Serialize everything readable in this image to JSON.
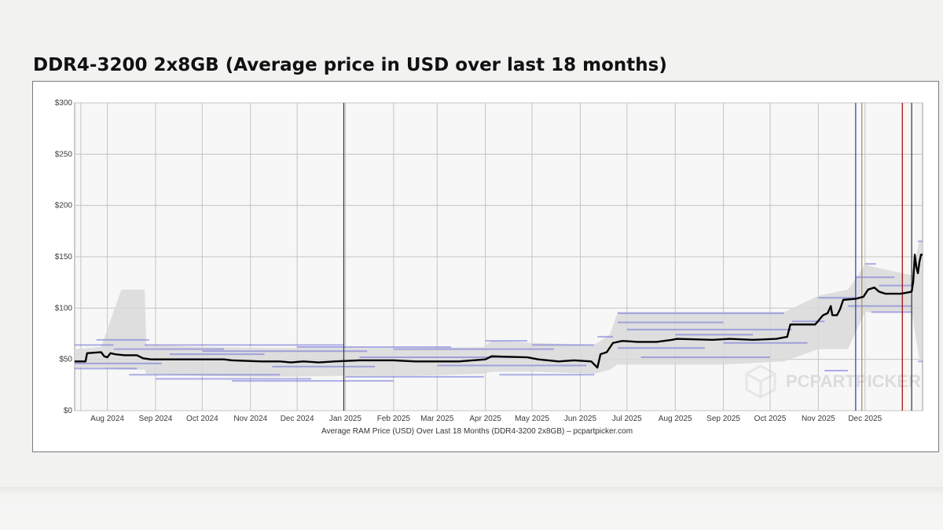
{
  "page": {
    "title": "DDR4-3200 2x8GB (Average price in USD over last 18 months)"
  },
  "chart_data": {
    "type": "line",
    "title": "DDR4-3200 2x8GB (Average price in USD over last 18 months)",
    "caption": "Average RAM Price (USD) Over Last 18 Months (DDR4-3200 2x8GB) – pcpartpicker.com",
    "watermark": "PCPARTPICKER",
    "y_ticks": [
      0,
      50,
      100,
      150,
      200,
      250,
      300
    ],
    "y_tick_labels": [
      "$0",
      "$50",
      "$100",
      "$150",
      "$200",
      "$250",
      "$300"
    ],
    "ylim": [
      0,
      300
    ],
    "xlim": [
      "2024-07-11",
      "2025-12-31"
    ],
    "x_ticks": [
      {
        "date": "2024-08-01",
        "label": "Aug 2024"
      },
      {
        "date": "2024-09-01",
        "label": "Sep 2024"
      },
      {
        "date": "2024-10-01",
        "label": "Oct 2024"
      },
      {
        "date": "2024-11-01",
        "label": "Nov 2024"
      },
      {
        "date": "2024-12-01",
        "label": "Dec 2024"
      },
      {
        "date": "2025-01-01",
        "label": "Jan 2025"
      },
      {
        "date": "2025-02-01",
        "label": "Feb 2025"
      },
      {
        "date": "2025-03-01",
        "label": "Mar 2025"
      },
      {
        "date": "2025-04-01",
        "label": "Apr 2025"
      },
      {
        "date": "2025-05-01",
        "label": "May 2025"
      },
      {
        "date": "2025-06-01",
        "label": "Jun 2025"
      },
      {
        "date": "2025-07-01",
        "label": "Jul 2025"
      },
      {
        "date": "2025-08-01",
        "label": "Aug 2025"
      },
      {
        "date": "2025-09-01",
        "label": "Sep 2025"
      },
      {
        "date": "2025-10-01",
        "label": "Oct 2025"
      },
      {
        "date": "2025-11-01",
        "label": "Nov 2025"
      },
      {
        "date": "2025-12-01",
        "label": "Dec 2025"
      }
    ],
    "x_ticks_unlabeled": [
      "2024-07-15",
      "2024-12-31"
    ],
    "markers": [
      {
        "date": "2024-12-31",
        "color": "#333333"
      },
      {
        "date": "2025-11-25",
        "color": "#3333aa"
      },
      {
        "date": "2025-11-29",
        "color": "#a08870"
      },
      {
        "date": "2025-12-25",
        "color": "#990000"
      },
      {
        "date": "2025-12-31",
        "color": "#333333"
      }
    ],
    "series": [
      {
        "style": "average",
        "color": "#000000",
        "points": [
          [
            "2024-07-11",
            48
          ],
          [
            "2024-07-18",
            48
          ],
          [
            "2024-07-19",
            56
          ],
          [
            "2024-07-28",
            57
          ],
          [
            "2024-07-30",
            53
          ],
          [
            "2024-08-01",
            52
          ],
          [
            "2024-08-03",
            56
          ],
          [
            "2024-08-06",
            55
          ],
          [
            "2024-08-12",
            54
          ],
          [
            "2024-08-20",
            54
          ],
          [
            "2024-08-24",
            51
          ],
          [
            "2024-08-29",
            50
          ],
          [
            "2024-09-15",
            50
          ],
          [
            "2024-10-15",
            50
          ],
          [
            "2024-10-20",
            49
          ],
          [
            "2024-11-08",
            48
          ],
          [
            "2024-11-20",
            48
          ],
          [
            "2024-11-27",
            47
          ],
          [
            "2024-12-05",
            48
          ],
          [
            "2024-12-15",
            47
          ],
          [
            "2024-12-25",
            48
          ],
          [
            "2025-01-10",
            49
          ],
          [
            "2025-02-01",
            49
          ],
          [
            "2025-02-15",
            48
          ],
          [
            "2025-03-15",
            48
          ],
          [
            "2025-04-01",
            50
          ],
          [
            "2025-04-05",
            53
          ],
          [
            "2025-04-28",
            52
          ],
          [
            "2025-05-05",
            50
          ],
          [
            "2025-05-18",
            48
          ],
          [
            "2025-05-28",
            49
          ],
          [
            "2025-06-08",
            48
          ],
          [
            "2025-06-12",
            42
          ],
          [
            "2025-06-14",
            55
          ],
          [
            "2025-06-18",
            57
          ],
          [
            "2025-06-22",
            66
          ],
          [
            "2025-06-28",
            68
          ],
          [
            "2025-07-08",
            67
          ],
          [
            "2025-07-20",
            67
          ],
          [
            "2025-07-30",
            69
          ],
          [
            "2025-08-02",
            70
          ],
          [
            "2025-08-25",
            69
          ],
          [
            "2025-09-05",
            70
          ],
          [
            "2025-09-20",
            69
          ],
          [
            "2025-10-05",
            70
          ],
          [
            "2025-10-12",
            72
          ],
          [
            "2025-10-14",
            84
          ],
          [
            "2025-10-30",
            84
          ],
          [
            "2025-11-04",
            93
          ],
          [
            "2025-11-07",
            95
          ],
          [
            "2025-11-09",
            102
          ],
          [
            "2025-11-10",
            93
          ],
          [
            "2025-11-13",
            93
          ],
          [
            "2025-11-15",
            99
          ],
          [
            "2025-11-17",
            108
          ],
          [
            "2025-11-25",
            109
          ],
          [
            "2025-11-30",
            111
          ],
          [
            "2025-12-03",
            118
          ],
          [
            "2025-12-07",
            120
          ],
          [
            "2025-12-10",
            116
          ],
          [
            "2025-12-14",
            114
          ],
          [
            "2025-12-24",
            114
          ],
          [
            "2025-12-28",
            115
          ],
          [
            "2025-12-31",
            116
          ],
          [
            "2026-01-01",
            126
          ],
          [
            "2026-01-02",
            152
          ],
          [
            "2026-01-03",
            140
          ],
          [
            "2026-01-04",
            134
          ],
          [
            "2026-01-05",
            145
          ],
          [
            "2026-01-06",
            152
          ],
          [
            "2026-01-07",
            152
          ]
        ]
      }
    ],
    "range_band": {
      "color": "#d9d9d9",
      "points": [
        [
          "2024-07-11",
          42,
          60
        ],
        [
          "2024-07-28",
          42,
          62
        ],
        [
          "2024-08-10",
          40,
          118
        ],
        [
          "2024-08-25",
          40,
          118
        ],
        [
          "2024-08-26",
          36,
          64
        ],
        [
          "2024-10-01",
          34,
          62
        ],
        [
          "2024-11-15",
          33,
          61
        ],
        [
          "2024-12-31",
          34,
          61
        ],
        [
          "2025-02-15",
          34,
          61
        ],
        [
          "2025-03-31",
          36,
          62
        ],
        [
          "2025-04-05",
          38,
          68
        ],
        [
          "2025-05-01",
          38,
          66
        ],
        [
          "2025-06-10",
          36,
          64
        ],
        [
          "2025-06-20",
          40,
          74
        ],
        [
          "2025-06-25",
          45,
          96
        ],
        [
          "2025-09-01",
          45,
          96
        ],
        [
          "2025-10-10",
          48,
          96
        ],
        [
          "2025-11-01",
          60,
          112
        ],
        [
          "2025-11-20",
          60,
          118
        ],
        [
          "2025-12-01",
          96,
          142
        ],
        [
          "2025-12-31",
          96,
          132
        ],
        [
          "2026-01-05",
          50,
          165
        ],
        [
          "2026-01-07",
          50,
          165
        ]
      ]
    },
    "retailer_lines": {
      "color": "#6e70d6",
      "segments": [
        [
          "2024-07-11",
          "2024-08-05",
          64
        ],
        [
          "2024-07-11",
          "2024-09-05",
          46
        ],
        [
          "2024-07-11",
          "2024-08-20",
          41
        ],
        [
          "2024-07-25",
          "2024-08-28",
          69
        ],
        [
          "2024-08-05",
          "2024-10-15",
          60
        ],
        [
          "2024-08-15",
          "2024-11-20",
          35
        ],
        [
          "2024-09-01",
          "2024-12-10",
          31
        ],
        [
          "2024-09-10",
          "2024-11-10",
          55
        ],
        [
          "2024-08-25",
          "2024-12-31",
          64
        ],
        [
          "2024-10-01",
          "2025-01-15",
          58
        ],
        [
          "2024-10-20",
          "2025-02-01",
          29
        ],
        [
          "2024-11-15",
          "2025-01-20",
          43
        ],
        [
          "2024-12-01",
          "2025-03-10",
          62
        ],
        [
          "2025-01-01",
          "2025-03-31",
          33
        ],
        [
          "2025-01-10",
          "2025-04-20",
          52
        ],
        [
          "2025-02-01",
          "2025-05-15",
          60
        ],
        [
          "2025-03-01",
          "2025-06-05",
          44
        ],
        [
          "2025-04-01",
          "2025-04-28",
          68
        ],
        [
          "2025-04-10",
          "2025-06-10",
          35
        ],
        [
          "2025-05-01",
          "2025-06-10",
          64
        ],
        [
          "2025-06-12",
          "2025-06-22",
          72
        ],
        [
          "2025-06-25",
          "2025-10-10",
          95
        ],
        [
          "2025-06-25",
          "2025-09-01",
          86
        ],
        [
          "2025-07-01",
          "2025-10-15",
          79
        ],
        [
          "2025-06-25",
          "2025-08-20",
          61
        ],
        [
          "2025-07-10",
          "2025-10-01",
          52
        ],
        [
          "2025-08-01",
          "2025-09-20",
          74
        ],
        [
          "2025-09-01",
          "2025-10-25",
          66
        ],
        [
          "2025-10-15",
          "2025-11-05",
          87
        ],
        [
          "2025-11-01",
          "2025-11-25",
          110
        ],
        [
          "2025-11-05",
          "2025-11-20",
          39
        ],
        [
          "2025-11-20",
          "2025-12-31",
          102
        ],
        [
          "2025-11-25",
          "2025-12-20",
          130
        ],
        [
          "2025-12-01",
          "2025-12-08",
          143
        ],
        [
          "2025-12-10",
          "2025-12-31",
          122
        ],
        [
          "2025-12-05",
          "2025-12-31",
          96
        ],
        [
          "2026-01-04",
          "2026-01-07",
          165
        ],
        [
          "2026-01-04",
          "2026-01-07",
          48
        ]
      ]
    }
  }
}
